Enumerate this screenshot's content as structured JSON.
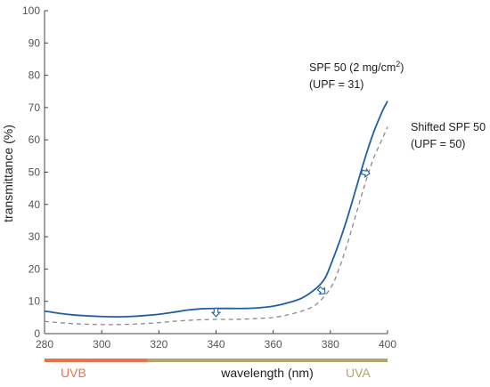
{
  "colors": {
    "solid_series": "#1f5fa8",
    "dashed_series": "#8a8a8a",
    "uvb": "#e8734a",
    "uva": "#b3a46a",
    "axis": "#444444"
  },
  "labels": {
    "uvb": "UVB",
    "uva": "UVA"
  },
  "chart_data": {
    "type": "line",
    "xlabel": "wavelength (nm)",
    "ylabel": "transmittance (%)",
    "xlim": [
      280,
      400
    ],
    "ylim": [
      0,
      100
    ],
    "xticks": [
      280,
      300,
      320,
      340,
      360,
      380,
      400
    ],
    "yticks": [
      0,
      10,
      20,
      30,
      40,
      50,
      60,
      70,
      80,
      90,
      100
    ],
    "grid": false,
    "series": [
      {
        "name": "SPF 50 (2 mg/cm²) (UPF = 31)",
        "style": "solid",
        "color": "#1f5fa8",
        "x": [
          280,
          285,
          290,
          295,
          300,
          305,
          310,
          315,
          320,
          325,
          330,
          335,
          340,
          345,
          350,
          355,
          360,
          365,
          370,
          375,
          378,
          380,
          383,
          386,
          389,
          392,
          395,
          398,
          400
        ],
        "y": [
          7.0,
          6.3,
          5.8,
          5.5,
          5.3,
          5.2,
          5.3,
          5.6,
          6.0,
          6.6,
          7.3,
          7.7,
          7.8,
          7.8,
          7.8,
          8.0,
          8.5,
          9.5,
          11.0,
          14.0,
          17.0,
          21.0,
          28.0,
          36.0,
          45.0,
          54.0,
          62.0,
          68.5,
          72.0
        ]
      },
      {
        "name": "Shifted SPF 50 (UPF = 50)",
        "style": "dashed",
        "color": "#8a8a8a",
        "x": [
          280,
          285,
          290,
          295,
          300,
          305,
          310,
          315,
          320,
          325,
          330,
          335,
          340,
          345,
          350,
          355,
          360,
          365,
          370,
          375,
          380,
          383,
          386,
          389,
          392,
          395,
          398,
          400
        ],
        "y": [
          3.8,
          3.4,
          3.1,
          2.9,
          2.8,
          2.8,
          2.9,
          3.1,
          3.4,
          3.8,
          4.1,
          4.3,
          4.4,
          4.4,
          4.5,
          4.7,
          5.0,
          5.8,
          7.0,
          9.0,
          14.0,
          20.0,
          28.0,
          37.0,
          46.0,
          54.0,
          60.0,
          64.0
        ]
      }
    ],
    "annotations": [
      {
        "lines": [
          "SPF 50 (2 mg/cm",
          "2",
          ")"
        ],
        "line2": "(UPF = 31)"
      },
      {
        "line1": "Shifted SPF 50",
        "line2": "(UPF = 50)"
      }
    ],
    "shift_arrows": [
      {
        "x": 340,
        "y_from": 7.8,
        "y_to": 4.4
      },
      {
        "x": 376,
        "y_from": 14.0,
        "y_to": 11.0
      },
      {
        "x": 391,
        "y_from": 50.0,
        "y_to": 48.0
      }
    ],
    "bands": [
      {
        "label": "UVB",
        "from": 280,
        "to": 316,
        "color": "#e8734a"
      },
      {
        "label": "UVA",
        "from": 316,
        "to": 400,
        "color": "#b3a46a"
      }
    ]
  }
}
